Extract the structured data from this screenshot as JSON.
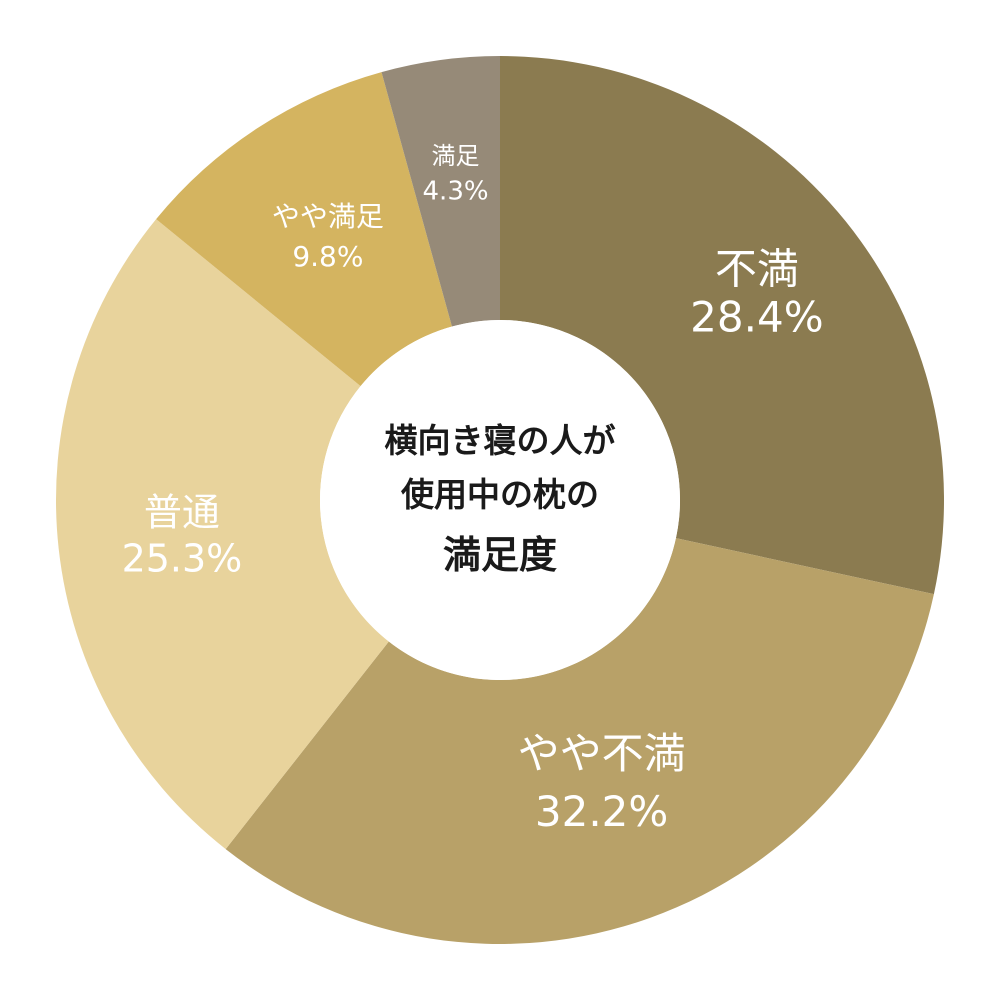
{
  "chart_data": {
    "type": "pie",
    "variant": "donut",
    "title_lines": [
      "横向き寝の人が",
      "使用中の枕の",
      "満足度"
    ],
    "categories": [
      "不満",
      "やや不満",
      "普通",
      "やや満足",
      "満足"
    ],
    "values": [
      28.4,
      32.2,
      25.3,
      9.8,
      4.3
    ],
    "value_labels": [
      "28.4%",
      "32.2%",
      "25.3%",
      "9.8%",
      "4.3%"
    ],
    "colors": [
      "#8b7b50",
      "#b8a168",
      "#e8d39c",
      "#d4b460",
      "#968a78"
    ],
    "start_angle_deg": 0,
    "direction": "clockwise",
    "legend": "none"
  }
}
